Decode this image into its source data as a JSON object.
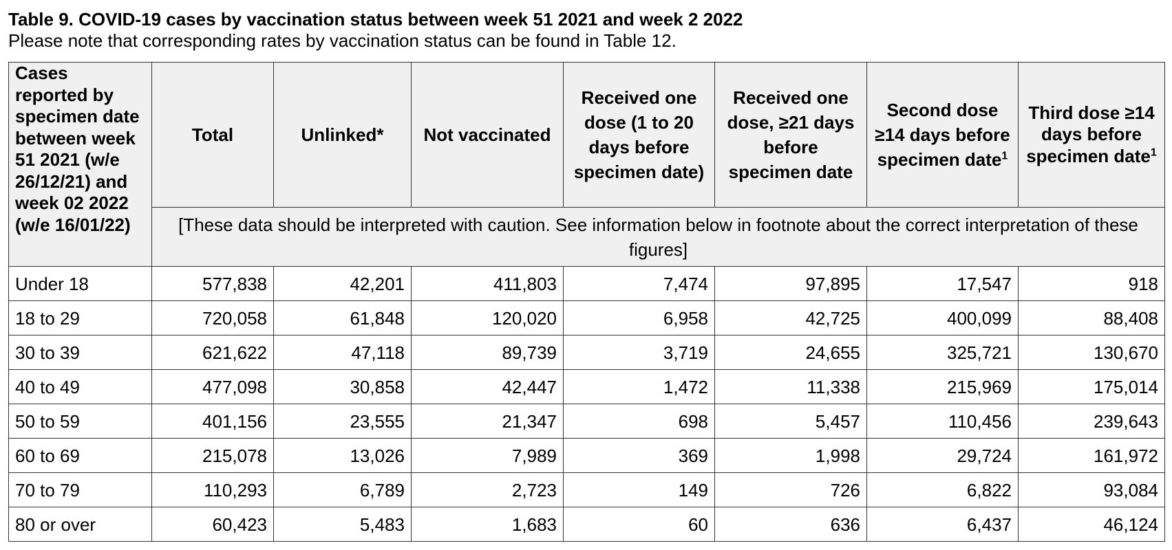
{
  "title": "Table 9. COVID-19 cases by vaccination status between week 51 2021 and week 2 2022",
  "subtitle": "Please note that corresponding rates by vaccination status can be found in Table 12.",
  "table": {
    "row_header": "Cases reported by specimen date between week 51 2021 (w/e 26/12/21) and week 02 2022 (w/e 16/01/22)",
    "columns": [
      {
        "label": "Total",
        "footnote": ""
      },
      {
        "label": "Unlinked*",
        "footnote": ""
      },
      {
        "label": "Not vaccinated",
        "footnote": ""
      },
      {
        "label": "Received one dose (1 to 20 days before specimen date)",
        "footnote": ""
      },
      {
        "label": "Received one dose, ≥21 days before specimen date",
        "footnote": ""
      },
      {
        "label": "Second dose ≥14 days before specimen date",
        "footnote": "1"
      },
      {
        "label": "Third dose ≥14 days before specimen date",
        "footnote": "1"
      }
    ],
    "caution_note": "[These data should be interpreted with caution. See information below in footnote about the correct interpretation of these figures]",
    "rows": [
      {
        "age": "Under 18",
        "values": [
          "577,838",
          "42,201",
          "411,803",
          "7,474",
          "97,895",
          "17,547",
          "918"
        ]
      },
      {
        "age": "18 to 29",
        "values": [
          "720,058",
          "61,848",
          "120,020",
          "6,958",
          "42,725",
          "400,099",
          "88,408"
        ]
      },
      {
        "age": "30 to 39",
        "values": [
          "621,622",
          "47,118",
          "89,739",
          "3,719",
          "24,655",
          "325,721",
          "130,670"
        ]
      },
      {
        "age": "40 to 49",
        "values": [
          "477,098",
          "30,858",
          "42,447",
          "1,472",
          "11,338",
          "215,969",
          "175,014"
        ]
      },
      {
        "age": "50 to 59",
        "values": [
          "401,156",
          "23,555",
          "21,347",
          "698",
          "5,457",
          "110,456",
          "239,643"
        ]
      },
      {
        "age": "60 to 69",
        "values": [
          "215,078",
          "13,026",
          "7,989",
          "369",
          "1,998",
          "29,724",
          "161,972"
        ]
      },
      {
        "age": "70 to 79",
        "values": [
          "110,293",
          "6,789",
          "2,723",
          "149",
          "726",
          "6,822",
          "93,084"
        ]
      },
      {
        "age": "80 or over",
        "values": [
          "60,423",
          "5,483",
          "1,683",
          "60",
          "636",
          "6,437",
          "46,124"
        ]
      }
    ]
  }
}
